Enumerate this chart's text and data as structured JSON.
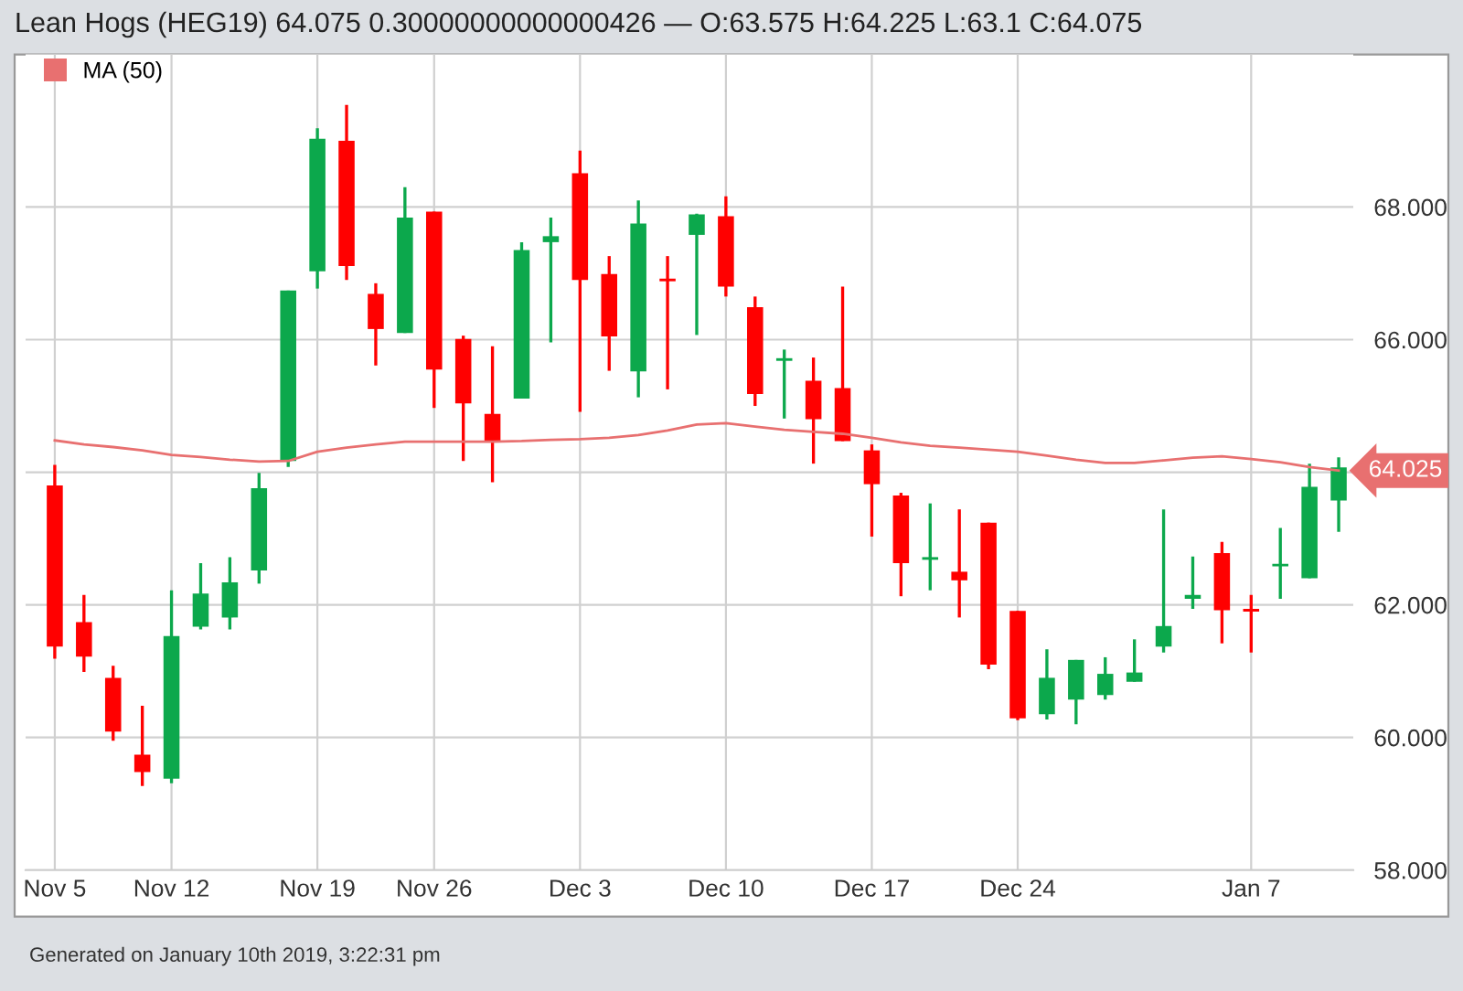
{
  "chart_data": {
    "type": "candlestick",
    "title": "Lean Hogs (HEG19) 64.075 0.30000000000000426 — O:63.575 H:64.225 L:63.1 C:64.075",
    "categories": [
      "Nov 5",
      null,
      null,
      null,
      "Nov 12",
      null,
      null,
      null,
      null,
      "Nov 19",
      null,
      null,
      null,
      "Nov 26",
      null,
      null,
      null,
      null,
      "Dec 3",
      null,
      null,
      null,
      null,
      "Dec 10",
      null,
      null,
      null,
      null,
      "Dec 17",
      null,
      null,
      null,
      null,
      "Dec 24",
      null,
      null,
      null,
      null,
      null,
      null,
      null,
      "Jan 7",
      null,
      null,
      null
    ],
    "ohlc": [
      [
        63.8,
        64.11,
        61.19,
        61.37
      ],
      [
        61.74,
        62.15,
        60.99,
        61.22
      ],
      [
        60.9,
        61.08,
        59.95,
        60.09
      ],
      [
        59.74,
        60.48,
        59.27,
        59.48
      ],
      [
        59.38,
        62.22,
        59.31,
        61.53
      ],
      [
        61.67,
        62.63,
        61.63,
        62.17
      ],
      [
        61.81,
        62.72,
        61.63,
        62.34
      ],
      [
        62.52,
        63.99,
        62.32,
        63.76
      ],
      [
        64.17,
        66.74,
        64.08,
        66.74
      ],
      [
        67.03,
        69.19,
        66.77,
        69.03
      ],
      [
        69.0,
        69.54,
        66.9,
        67.11
      ],
      [
        66.69,
        66.85,
        65.61,
        66.16
      ],
      [
        66.1,
        68.3,
        66.1,
        67.84
      ],
      [
        67.93,
        67.93,
        64.97,
        65.55
      ],
      [
        66.01,
        66.06,
        64.17,
        65.04
      ],
      [
        64.88,
        65.9,
        63.85,
        64.46
      ],
      [
        65.11,
        67.47,
        65.11,
        67.35
      ],
      [
        67.47,
        67.84,
        65.96,
        67.56
      ],
      [
        68.51,
        68.85,
        64.91,
        66.9
      ],
      [
        66.99,
        67.26,
        65.53,
        66.05
      ],
      [
        65.52,
        68.1,
        65.13,
        67.75
      ],
      [
        66.92,
        67.26,
        65.25,
        66.88
      ],
      [
        67.58,
        67.9,
        66.07,
        67.89
      ],
      [
        67.86,
        68.16,
        66.65,
        66.8
      ],
      [
        66.49,
        66.65,
        65.0,
        65.18
      ],
      [
        65.68,
        65.85,
        64.81,
        65.72
      ],
      [
        65.38,
        65.73,
        64.13,
        64.8
      ],
      [
        65.27,
        66.8,
        64.47,
        64.47
      ],
      [
        64.33,
        64.42,
        63.03,
        63.82
      ],
      [
        63.65,
        63.69,
        62.13,
        62.63
      ],
      [
        62.68,
        63.53,
        62.22,
        62.72
      ],
      [
        62.5,
        63.44,
        61.81,
        62.37
      ],
      [
        63.24,
        63.24,
        61.03,
        61.1
      ],
      [
        61.91,
        61.91,
        60.26,
        60.29
      ],
      [
        60.35,
        61.33,
        60.27,
        60.9
      ],
      [
        60.57,
        61.17,
        60.2,
        61.17
      ],
      [
        60.64,
        61.21,
        60.57,
        60.96
      ],
      [
        60.84,
        61.48,
        60.84,
        60.98
      ],
      [
        61.37,
        63.44,
        61.28,
        61.68
      ],
      [
        62.09,
        62.73,
        61.94,
        62.15
      ],
      [
        62.78,
        62.95,
        61.42,
        61.92
      ],
      [
        61.94,
        62.15,
        61.28,
        61.9
      ],
      [
        62.58,
        63.16,
        62.09,
        62.62
      ],
      [
        62.4,
        64.13,
        62.4,
        63.78
      ],
      [
        63.575,
        64.225,
        63.1,
        64.075
      ]
    ],
    "colors": [
      "#ff0000",
      "#ff0000",
      "#ff0000",
      "#ff0000",
      "#0ca84c",
      "#0ca84c",
      "#0ca84c",
      "#0ca84c",
      "#0ca84c",
      "#0ca84c",
      "#ff0000",
      "#ff0000",
      "#0ca84c",
      "#ff0000",
      "#ff0000",
      "#ff0000",
      "#0ca84c",
      "#0ca84c",
      "#ff0000",
      "#ff0000",
      "#0ca84c",
      "#ff0000",
      "#0ca84c",
      "#ff0000",
      "#ff0000",
      "#0ca84c",
      "#ff0000",
      "#ff0000",
      "#ff0000",
      "#ff0000",
      "#0ca84c",
      "#ff0000",
      "#ff0000",
      "#ff0000",
      "#0ca84c",
      "#0ca84c",
      "#0ca84c",
      "#0ca84c",
      "#0ca84c",
      "#0ca84c",
      "#ff0000",
      "#ff0000",
      "#0ca84c",
      "#0ca84c",
      "#0ca84c"
    ],
    "series": [
      {
        "name": "MA (50)",
        "type": "line",
        "color": "#e87070",
        "values": [
          64.48,
          64.42,
          64.38,
          64.33,
          64.26,
          64.23,
          64.19,
          64.16,
          64.17,
          64.31,
          64.37,
          64.42,
          64.46,
          64.46,
          64.46,
          64.46,
          64.47,
          64.49,
          64.5,
          64.52,
          64.56,
          64.63,
          64.72,
          64.74,
          64.69,
          64.64,
          64.61,
          64.58,
          64.52,
          64.45,
          64.4,
          64.37,
          64.34,
          64.31,
          64.25,
          64.19,
          64.14,
          64.14,
          64.18,
          64.22,
          64.24,
          64.2,
          64.15,
          64.08,
          64.025
        ],
        "value_labels": [
          null,
          null,
          null,
          null,
          null,
          null,
          null,
          null,
          null,
          null,
          null,
          null,
          null,
          null,
          null,
          null,
          null,
          null,
          null,
          null,
          null,
          null,
          null,
          null,
          null,
          null,
          null,
          null,
          null,
          null,
          null,
          null,
          null,
          null,
          null,
          null,
          null,
          null,
          null,
          null,
          null,
          null,
          null,
          null,
          "64.025"
        ]
      }
    ],
    "ylim": [
      58,
      70.3
    ],
    "yticks": [
      {
        "value": 58,
        "label": "58.000"
      },
      {
        "value": 60,
        "label": "60.000"
      },
      {
        "value": 62,
        "label": "62.000"
      },
      {
        "value": 64,
        "label": null
      },
      {
        "value": 66,
        "label": "66.000"
      },
      {
        "value": 68,
        "label": "68.000"
      }
    ],
    "grid": true,
    "legend": "top left",
    "annotations": [
      "Generated on January 10th 2019, 3:22:31 pm"
    ]
  }
}
